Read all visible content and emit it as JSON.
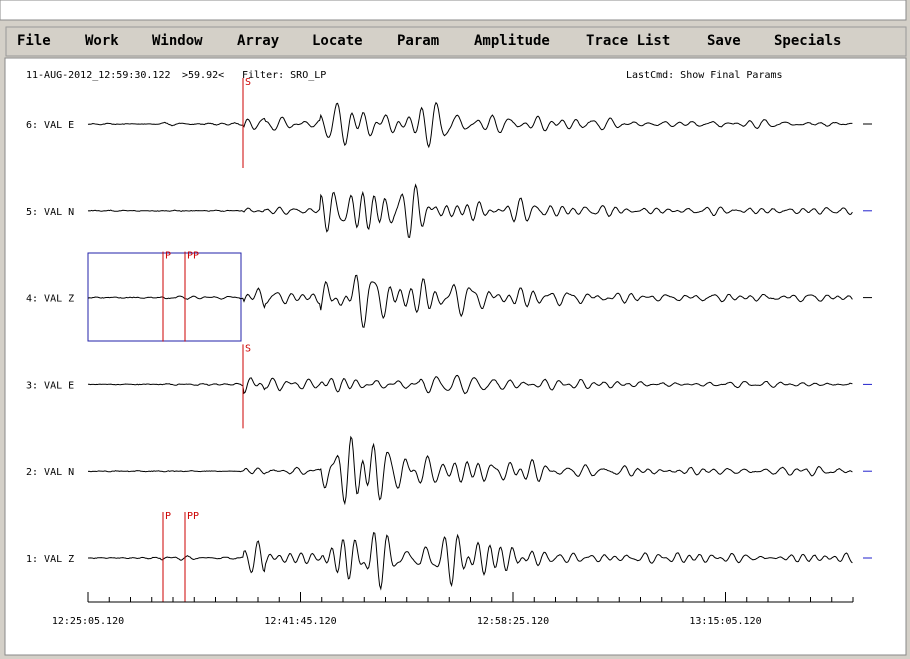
{
  "menu": [
    "File",
    "Work",
    "Window",
    "Array",
    "Locate",
    "Param",
    "Amplitude",
    "Trace List",
    "Save",
    "Specials"
  ],
  "status": {
    "time": "11-AUG-2012_12:59:30.122",
    "marker": ">59.92<",
    "filter": "Filter: SRO_LP",
    "last_cmd": "LastCmd: Show Final Params"
  },
  "traces": [
    {
      "label": "6: VAL E",
      "phases": [
        "S"
      ]
    },
    {
      "label": "5: VAL N",
      "phases": []
    },
    {
      "label": "4: VAL Z",
      "phases": [
        "P",
        "PP"
      ]
    },
    {
      "label": "3: VAL E",
      "phases": [
        "S"
      ]
    },
    {
      "label": "2: VAL N",
      "phases": []
    },
    {
      "label": "1: VAL Z",
      "phases": [
        "P",
        "PP"
      ]
    }
  ],
  "time_axis": [
    "12:25:05.120",
    "12:41:45.120",
    "12:58:25.120",
    "13:15:05.120"
  ]
}
